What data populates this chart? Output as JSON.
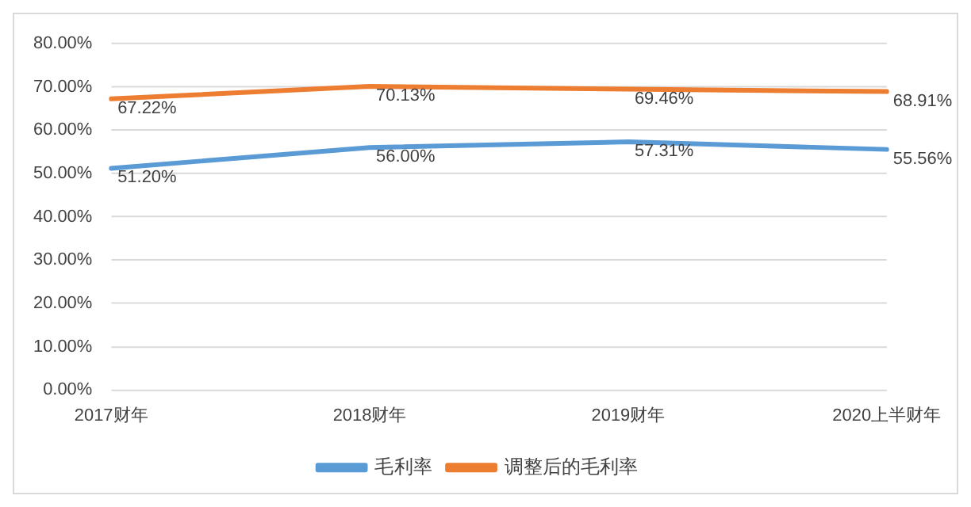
{
  "chart_data": {
    "type": "line",
    "categories": [
      "2017财年",
      "2018财年",
      "2019财年",
      "2020上半财年"
    ],
    "series": [
      {
        "name": "毛利率",
        "color": "#5b9bd5",
        "values": [
          51.2,
          56.0,
          57.31,
          55.56
        ],
        "value_labels": [
          "51.20%",
          "56.00%",
          "57.31%",
          "55.56%"
        ]
      },
      {
        "name": "调整后的毛利率",
        "color": "#ed7d31",
        "values": [
          67.22,
          70.13,
          69.46,
          68.91
        ],
        "value_labels": [
          "67.22%",
          "70.13%",
          "69.46%",
          "68.91%"
        ]
      }
    ],
    "ylim": [
      0,
      80
    ],
    "yticks": [
      {
        "value": 0,
        "label": "0.00%"
      },
      {
        "value": 10,
        "label": "10.00%"
      },
      {
        "value": 20,
        "label": "20.00%"
      },
      {
        "value": 30,
        "label": "30.00%"
      },
      {
        "value": 40,
        "label": "40.00%"
      },
      {
        "value": 50,
        "label": "50.00%"
      },
      {
        "value": 60,
        "label": "60.00%"
      },
      {
        "value": 70,
        "label": "70.00%"
      },
      {
        "value": 80,
        "label": "80.00%"
      }
    ],
    "grid": "y",
    "legend": "bottom",
    "marker": "none",
    "line_style": "solid"
  }
}
